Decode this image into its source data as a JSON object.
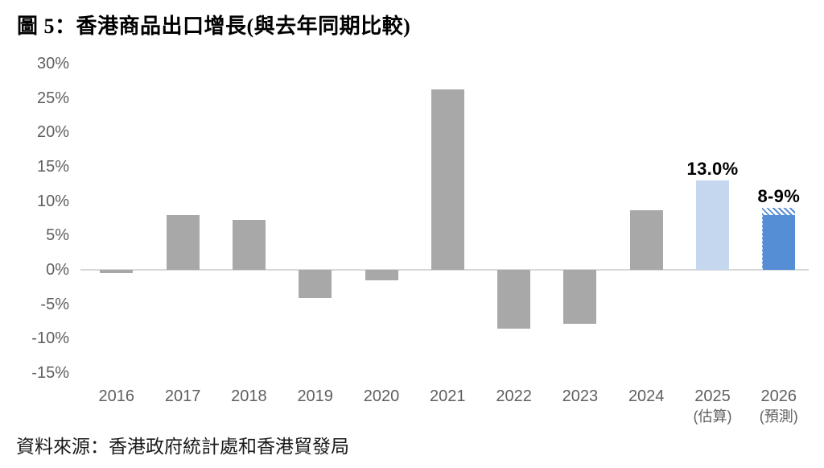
{
  "figure": {
    "title": "圖 5：香港商品出口增長(與去年同期比較)",
    "source": "資料來源：香港政府統計處和香港貿發局"
  },
  "colors": {
    "bar_gray": "#a8a8a8",
    "bar_light_blue": "#c5d7ef",
    "bar_blue": "#558ed5",
    "axis_line": "#d9d9d9",
    "tick_text": "#5f5f5f",
    "annotation_text": "#000000"
  },
  "chart_data": {
    "type": "bar",
    "title": "圖 5：香港商品出口增長(與去年同期比較)",
    "xlabel": "",
    "ylabel": "",
    "ylim": [
      -15,
      30
    ],
    "grid": false,
    "legend": null,
    "y_ticks": [
      "30%",
      "25%",
      "20%",
      "15%",
      "10%",
      "5%",
      "0%",
      "-5%",
      "-10%",
      "-15%"
    ],
    "categories": [
      "2016",
      "2017",
      "2018",
      "2019",
      "2020",
      "2021",
      "2022",
      "2023",
      "2024",
      "2025",
      "2026"
    ],
    "values": [
      -0.5,
      8.0,
      7.3,
      -4.1,
      -1.5,
      26.3,
      -8.6,
      -7.8,
      8.7,
      13.0,
      "8-9"
    ],
    "bars": [
      {
        "year": "2016",
        "value": -0.5,
        "color": "bar_gray"
      },
      {
        "year": "2017",
        "value": 8.0,
        "color": "bar_gray"
      },
      {
        "year": "2018",
        "value": 7.3,
        "color": "bar_gray"
      },
      {
        "year": "2019",
        "value": -4.1,
        "color": "bar_gray"
      },
      {
        "year": "2020",
        "value": -1.5,
        "color": "bar_gray"
      },
      {
        "year": "2021",
        "value": 26.3,
        "color": "bar_gray"
      },
      {
        "year": "2022",
        "value": -8.6,
        "color": "bar_gray"
      },
      {
        "year": "2023",
        "value": -7.8,
        "color": "bar_gray"
      },
      {
        "year": "2024",
        "value": 8.7,
        "color": "bar_gray"
      },
      {
        "year": "2025",
        "sub_label": "(估算)",
        "value": 13.0,
        "color": "bar_light_blue",
        "annotation": "13.0%"
      },
      {
        "year": "2026",
        "sub_label": "(預測)",
        "value": 8,
        "value_high": 9,
        "hatched_top": true,
        "color": "bar_blue",
        "annotation": "8-9%"
      }
    ],
    "source": "資料來源：香港政府統計處和香港貿發局"
  }
}
